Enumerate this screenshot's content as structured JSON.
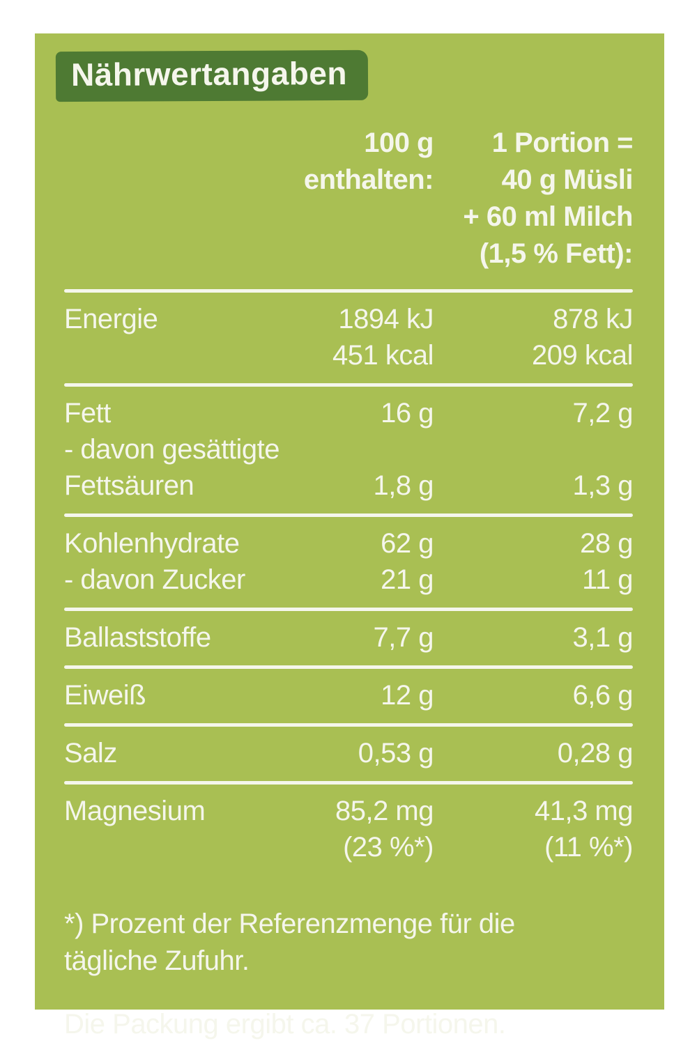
{
  "title": "Nährwertangaben",
  "colors": {
    "page": "#ffffff",
    "panel": "#a9bf53",
    "banner": "#4e7a33",
    "ink": "#f5f6ec"
  },
  "table": {
    "header": {
      "col1_lines": [
        "100 g",
        "enthalten:"
      ],
      "col2_lines": [
        "1 Portion =",
        "40 g Müsli",
        "+ 60 ml Milch",
        "(1,5 % Fett):"
      ]
    },
    "groups": [
      {
        "name": "Energie",
        "lines": [
          {
            "label": "Energie",
            "v100": "1894 kJ",
            "vportion": "878 kJ"
          },
          {
            "label": "",
            "v100": "451 kcal",
            "vportion": "209 kcal"
          }
        ]
      },
      {
        "name": "Fett",
        "lines": [
          {
            "label": "Fett",
            "v100": "16 g",
            "vportion": "7,2 g"
          },
          {
            "label": "- davon gesättigte",
            "v100": "",
            "vportion": ""
          },
          {
            "label": "Fettsäuren",
            "v100": "1,8 g",
            "vportion": "1,3 g"
          }
        ]
      },
      {
        "name": "Kohlenhydrate",
        "lines": [
          {
            "label": "Kohlenhydrate",
            "v100": "62 g",
            "vportion": "28 g"
          },
          {
            "label": "- davon Zucker",
            "v100": "21 g",
            "vportion": "11 g"
          }
        ]
      },
      {
        "name": "Ballaststoffe",
        "lines": [
          {
            "label": "Ballaststoffe",
            "v100": "7,7 g",
            "vportion": "3,1 g"
          }
        ]
      },
      {
        "name": "Eiweiß",
        "lines": [
          {
            "label": "Eiweiß",
            "v100": "12 g",
            "vportion": "6,6 g"
          }
        ]
      },
      {
        "name": "Salz",
        "lines": [
          {
            "label": "Salz",
            "v100": "0,53 g",
            "vportion": "0,28 g"
          }
        ]
      },
      {
        "name": "Magnesium",
        "lines": [
          {
            "label": "Magnesium",
            "v100": "85,2 mg",
            "vportion": "41,3 mg"
          },
          {
            "label": "",
            "v100": "(23 %*)",
            "vportion": "(11 %*)"
          }
        ]
      }
    ]
  },
  "footnotes": {
    "reference_line1": "*) Prozent der Referenzmenge für die",
    "reference_line2": "tägliche Zufuhr.",
    "portions": "Die Packung ergibt ca. 37 Portionen."
  }
}
